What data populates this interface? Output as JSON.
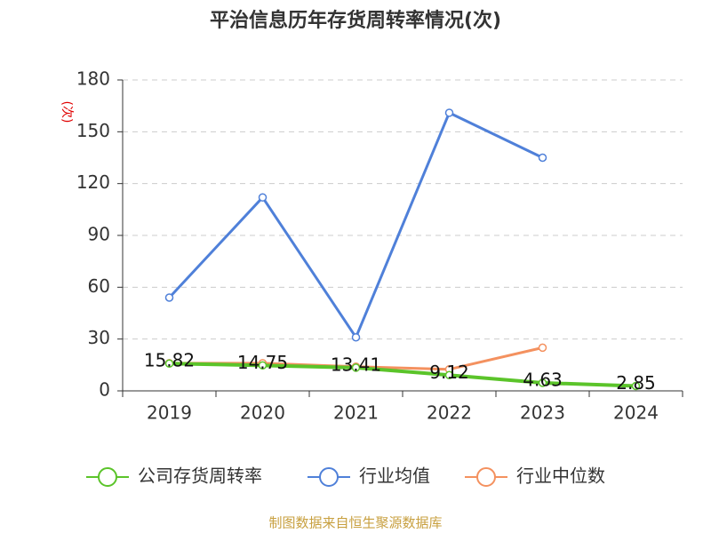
{
  "chart_data": {
    "type": "line",
    "title": "平治信息历年存货周转率情况(次)",
    "y_label": "(次)",
    "categories": [
      "2019",
      "2020",
      "2021",
      "2022",
      "2023",
      "2024"
    ],
    "series": [
      {
        "name": "公司存货周转率",
        "color": "#5bc42a",
        "values": [
          15.82,
          14.75,
          13.41,
          9.12,
          4.63,
          2.85
        ],
        "show_labels": true
      },
      {
        "name": "行业均值",
        "color": "#4f80d9",
        "values": [
          54,
          112,
          31,
          161,
          135,
          null
        ],
        "show_labels": false
      },
      {
        "name": "行业中位数",
        "color": "#f4915f",
        "values": [
          16,
          16,
          14,
          12.5,
          25,
          null
        ],
        "show_labels": false
      }
    ],
    "ylim": [
      0,
      180
    ],
    "yticks": [
      0,
      30,
      60,
      90,
      120,
      150,
      180
    ],
    "grid": true,
    "source": "制图数据来自恒生聚源数据库"
  }
}
